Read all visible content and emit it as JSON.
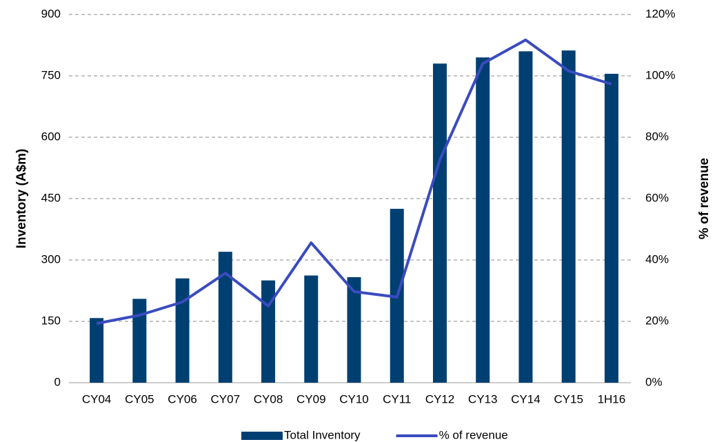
{
  "chart_data": {
    "type": "bar",
    "categories": [
      "CY04",
      "CY05",
      "CY06",
      "CY07",
      "CY08",
      "CY09",
      "CY10",
      "CY11",
      "CY12",
      "CY13",
      "CY14",
      "CY15",
      "1H16"
    ],
    "y_label": "Inventory (A$m)",
    "y2_label": "% of revenue",
    "series": [
      {
        "name": "Total Inventory",
        "type": "bar",
        "color": "#003f72",
        "values": [
          158,
          205,
          255,
          320,
          250,
          262,
          258,
          425,
          780,
          795,
          810,
          812,
          755
        ]
      },
      {
        "name": "% of revenue",
        "type": "line",
        "axis": "y2",
        "color": "#3a4bbf",
        "values": [
          19.3,
          22,
          26.3,
          35.7,
          25,
          45.6,
          29.7,
          27.9,
          72.6,
          104,
          111.7,
          101.6,
          97.3
        ]
      }
    ],
    "ylim": [
      0,
      900
    ],
    "yticks": [
      0,
      150,
      300,
      450,
      600,
      750,
      900
    ],
    "y2lim": [
      0,
      120
    ],
    "y2ticks": [
      {
        "value": 0,
        "label": "0%"
      },
      {
        "value": 20,
        "label": "20%"
      },
      {
        "value": 40,
        "label": "40%"
      },
      {
        "value": 60,
        "label": "60%"
      },
      {
        "value": 80,
        "label": "80%"
      },
      {
        "value": 100,
        "label": "100%"
      },
      {
        "value": 120,
        "label": "120%"
      }
    ],
    "grid": true,
    "legend": "bottom"
  }
}
